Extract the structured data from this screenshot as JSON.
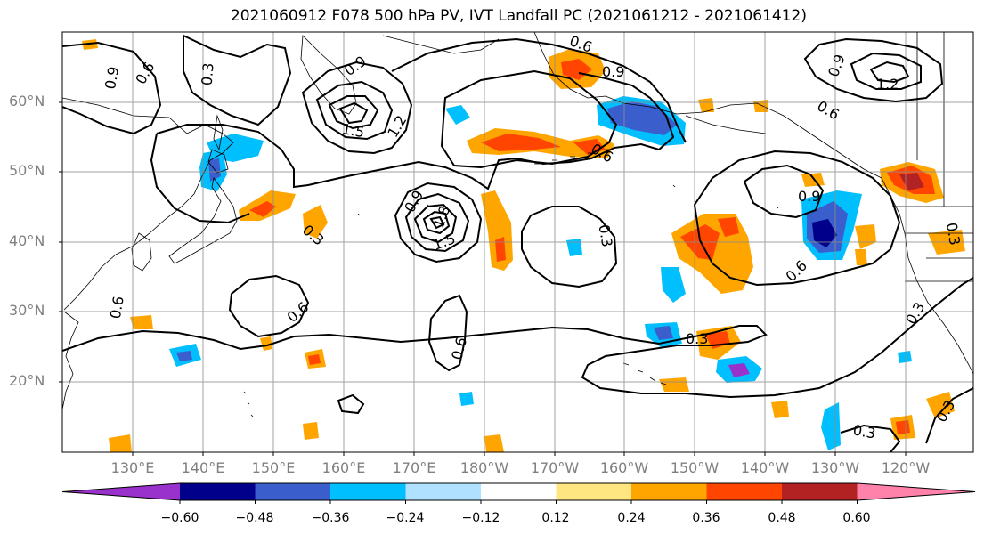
{
  "title": "2021060912 F078 500 hPa PV, IVT Landfall PC (2021061212 - 2021061412)",
  "lat_labels": [
    "60°N",
    "50°N",
    "40°N",
    "30°N",
    "20°N"
  ],
  "lon_labels": [
    "130°E",
    "140°E",
    "150°E",
    "160°E",
    "170°E",
    "180°W",
    "170°W",
    "160°W",
    "150°W",
    "140°W",
    "130°W",
    "120°W"
  ],
  "colorbar": {
    "ticks": [
      "−0.60",
      "−0.48",
      "−0.36",
      "−0.24",
      "−0.12",
      "0.12",
      "0.24",
      "0.36",
      "0.48",
      "0.60"
    ],
    "colors": [
      "#9932cc",
      "#00008b",
      "#3a5fcd",
      "#00bfff",
      "#b0e2ff",
      "#ffffff",
      "#ffe680",
      "#ffa500",
      "#ff4500",
      "#b22222",
      "#ff82ab"
    ]
  },
  "contour_labels": [
    "0.9",
    "0.6",
    "0.3",
    "0.9",
    "1.5",
    "1.2",
    "0.6",
    "0.9",
    "1.2",
    "0.9",
    "0.6",
    "0.3",
    "0.9",
    "1.8",
    "1.5",
    "0.3",
    "0.6",
    "0.6",
    "0.6",
    "0.6",
    "0.9",
    "0.6",
    "0.3",
    "0.3",
    "0.3",
    "0.3",
    "0.3"
  ]
}
